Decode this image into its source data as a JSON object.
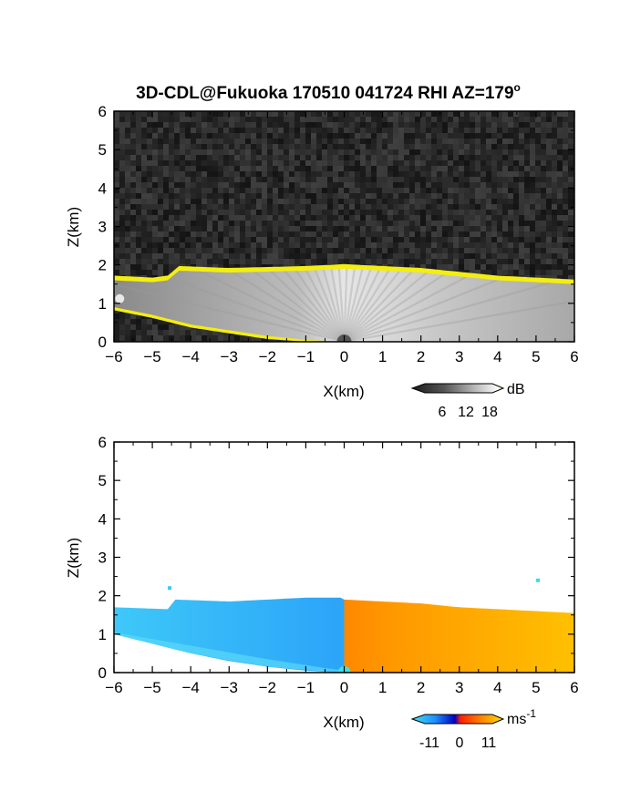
{
  "title": "3D-CDL@Fukuoka 170510 041724 RHI AZ=179",
  "title_sup": "o",
  "chart_data": [
    {
      "type": "heatmap",
      "name": "reflectivity",
      "xlabel": "X(km)",
      "ylabel": "Z(km)",
      "xlim": [
        -6,
        6
      ],
      "ylim": [
        0,
        6
      ],
      "x_ticks": [
        "-6",
        "-5",
        "-4",
        "-3",
        "-2",
        "-1",
        "0",
        "1",
        "2",
        "3",
        "4",
        "5",
        "6"
      ],
      "y_ticks": [
        "0",
        "1",
        "2",
        "3",
        "4",
        "5",
        "6"
      ],
      "colorbar": {
        "unit": "dB",
        "ticks": [
          "6",
          "12",
          "18"
        ],
        "range": [
          0,
          20
        ]
      },
      "background": "noise",
      "echo_top_km": [
        [
          -6,
          1.6
        ],
        [
          -5,
          1.55
        ],
        [
          -4.6,
          1.6
        ],
        [
          -4.3,
          1.85
        ],
        [
          -3,
          1.8
        ],
        [
          -1,
          1.85
        ],
        [
          0,
          1.9
        ],
        [
          1,
          1.85
        ],
        [
          2,
          1.8
        ],
        [
          3,
          1.7
        ],
        [
          4,
          1.6
        ],
        [
          5,
          1.55
        ],
        [
          6,
          1.5
        ]
      ],
      "echo_base_km": [
        [
          -6,
          0.9
        ],
        [
          -5,
          0.7
        ],
        [
          -4,
          0.45
        ],
        [
          -3,
          0.3
        ],
        [
          -2,
          0.15
        ],
        [
          -1,
          0.05
        ],
        [
          0,
          0.0
        ],
        [
          6,
          0.0
        ]
      ],
      "colors": {
        "edge": "#f4ee10",
        "bg": "#2a2a2a"
      }
    },
    {
      "type": "heatmap",
      "name": "doppler-velocity",
      "xlabel": "X(km)",
      "ylabel": "Z(km)",
      "xlim": [
        -6,
        6
      ],
      "ylim": [
        0,
        6
      ],
      "x_ticks": [
        "-6",
        "-5",
        "-4",
        "-3",
        "-2",
        "-1",
        "0",
        "1",
        "2",
        "3",
        "4",
        "5",
        "6"
      ],
      "y_ticks": [
        "0",
        "1",
        "2",
        "3",
        "4",
        "5",
        "6"
      ],
      "colorbar": {
        "unit": "ms",
        "unit_sup": "-1",
        "ticks": [
          "-11",
          "0",
          "11"
        ],
        "range": [
          -16,
          16
        ]
      },
      "echo_top_km": [
        [
          -6,
          1.7
        ],
        [
          -4.6,
          1.65
        ],
        [
          -4.4,
          1.9
        ],
        [
          -3,
          1.85
        ],
        [
          -1,
          1.95
        ],
        [
          -0.1,
          1.95
        ],
        [
          0,
          1.9
        ],
        [
          1,
          1.85
        ],
        [
          2,
          1.8
        ],
        [
          3,
          1.7
        ],
        [
          4,
          1.65
        ],
        [
          5,
          1.6
        ],
        [
          6,
          1.55
        ]
      ],
      "echo_base_km": [
        [
          -6,
          1.0
        ],
        [
          -5,
          0.75
        ],
        [
          -4,
          0.5
        ],
        [
          -3,
          0.3
        ],
        [
          -2,
          0.15
        ],
        [
          -1,
          0.05
        ],
        [
          0,
          0.0
        ],
        [
          6,
          0.0
        ]
      ],
      "colors": {
        "negative": "#1e78ff",
        "near_zero_neg": "#0000c8",
        "near_zero_pos": "#ff3000",
        "positive": "#ffb000"
      }
    }
  ]
}
